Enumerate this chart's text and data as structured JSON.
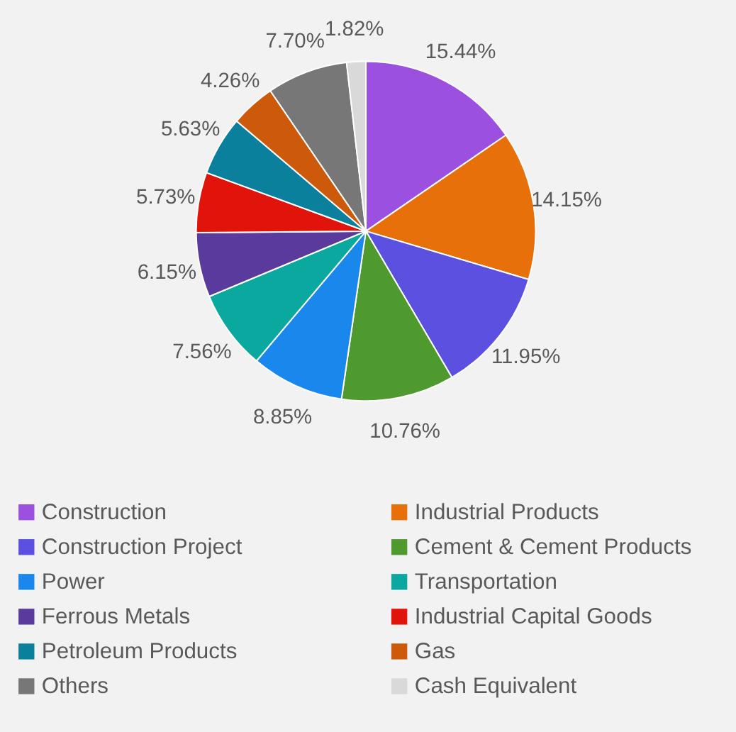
{
  "chart_data": {
    "type": "pie",
    "categories": [
      "Construction",
      "Industrial Products",
      "Construction Project",
      "Cement & Cement Products",
      "Power",
      "Transportation",
      "Ferrous Metals",
      "Industrial Capital Goods",
      "Petroleum Products",
      "Gas",
      "Others",
      "Cash Equivalent"
    ],
    "values": [
      15.44,
      14.15,
      11.95,
      10.76,
      8.85,
      7.56,
      6.15,
      5.73,
      5.63,
      4.26,
      7.7,
      1.82
    ],
    "value_labels": [
      "15.44%",
      "14.15%",
      "11.95%",
      "10.76%",
      "8.85%",
      "7.56%",
      "6.15%",
      "5.73%",
      "5.63%",
      "4.26%",
      "7.70%",
      "1.82%"
    ],
    "colors": [
      "#9b50e0",
      "#e8700a",
      "#5b50e0",
      "#4e9a2e",
      "#1a87ec",
      "#0aa89e",
      "#5b3a9e",
      "#e0140a",
      "#0a809c",
      "#cc5a0a",
      "#777777",
      "#d9d9d9"
    ],
    "legend": "bottom"
  }
}
